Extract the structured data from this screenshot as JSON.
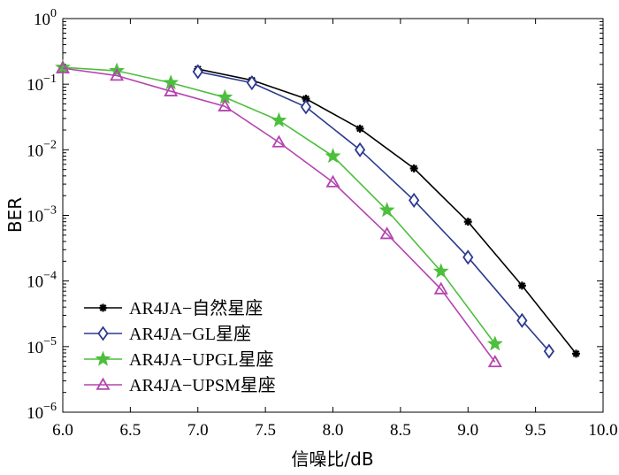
{
  "chart_data": {
    "type": "line",
    "title": "",
    "xlabel": "信噪比/dB",
    "ylabel": "BER",
    "xlim": [
      6.0,
      10.0
    ],
    "ylim": [
      1e-06,
      1
    ],
    "yscale": "log",
    "grid": false,
    "legend_position": "bottom-left",
    "x_ticks": [
      "6.0",
      "6.5",
      "7.0",
      "7.5",
      "8.0",
      "8.5",
      "9.0",
      "9.5",
      "10.0"
    ],
    "y_ticks": [
      {
        "base": "10",
        "exp": "0"
      },
      {
        "base": "10",
        "exp": "−1"
      },
      {
        "base": "10",
        "exp": "−2"
      },
      {
        "base": "10",
        "exp": "−3"
      },
      {
        "base": "10",
        "exp": "−4"
      },
      {
        "base": "10",
        "exp": "−5"
      },
      {
        "base": "10",
        "exp": "−6"
      }
    ],
    "series": [
      {
        "name": "AR4JA−自然星座",
        "color": "#000000",
        "marker": "asterisk",
        "x": [
          7.0,
          7.4,
          7.8,
          8.2,
          8.6,
          9.0,
          9.4,
          9.8
        ],
        "y": [
          0.17,
          0.115,
          0.06,
          0.021,
          0.0052,
          0.0008,
          8.5e-05,
          7.8e-06
        ]
      },
      {
        "name": "AR4JA−GL星座",
        "color": "#2b3a8f",
        "marker": "diamond",
        "x": [
          7.0,
          7.4,
          7.8,
          8.2,
          8.6,
          9.0,
          9.4,
          9.6
        ],
        "y": [
          0.155,
          0.105,
          0.045,
          0.01,
          0.0017,
          0.00023,
          2.5e-05,
          8.5e-06
        ]
      },
      {
        "name": "AR4JA−UPGL星座",
        "color": "#4cbf3c",
        "marker": "star",
        "x": [
          6.0,
          6.4,
          6.8,
          7.2,
          7.6,
          8.0,
          8.4,
          8.8,
          9.2
        ],
        "y": [
          0.18,
          0.16,
          0.105,
          0.063,
          0.028,
          0.008,
          0.0012,
          0.00014,
          1.1e-05
        ]
      },
      {
        "name": "AR4JA−UPSM星座",
        "color": "#b444b0",
        "marker": "triangle",
        "x": [
          6.0,
          6.4,
          6.8,
          7.2,
          7.6,
          8.0,
          8.4,
          8.8,
          9.2
        ],
        "y": [
          0.175,
          0.135,
          0.078,
          0.046,
          0.013,
          0.0032,
          0.00052,
          7.5e-05,
          5.8e-06
        ]
      }
    ]
  }
}
